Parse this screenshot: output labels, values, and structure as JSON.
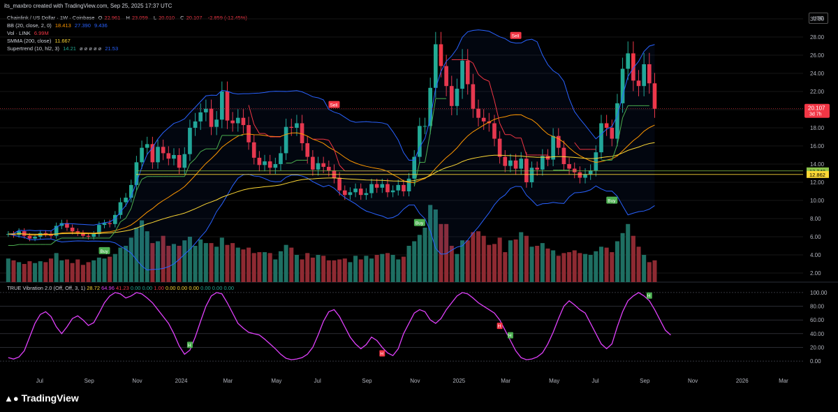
{
  "header": {
    "text": "its_maxbro created with TradingView.com, Sep 25, 2025 17:37 UTC"
  },
  "legend": {
    "main": {
      "name": "Chainlink / US Dollar · 1W · Coinbase",
      "o_label": "O",
      "o": "22.961",
      "h_label": "H",
      "h": "23.059",
      "l_label": "L",
      "l": "20.010",
      "c_label": "C",
      "c": "20.107",
      "change": "-2.859 (-12.45%)"
    },
    "bb": {
      "name": "BB (20, close, 2, 0)",
      "v1": "18.413",
      "v2": "27.390",
      "v3": "9.436"
    },
    "vol": {
      "name": "Vol · LINK",
      "v": "6.99M"
    },
    "smma": {
      "name": "SMMA (200, close)",
      "v": "11.667"
    },
    "supertrend": {
      "name": "Supertrend (10, hl2, 3)",
      "v1": "14.21",
      "dots": "ø ø ø ø ø",
      "v2": "21.53"
    }
  },
  "osc_legend": {
    "name": "TRUE Vibration 2.0 (Off, Off, 3, 1)",
    "v1": "28.72",
    "v2": "64.96",
    "v3": "41.23",
    "v4": "0.00",
    "v5": "0.00",
    "v6": "1.00",
    "v7": "0.00",
    "v8": "0.00",
    "v9": "0.00",
    "v10": "0.00",
    "v11": "0.00",
    "v12": "0.00"
  },
  "currency": "USD",
  "price_tag": {
    "price": "20.107",
    "countdown": "3d 7h"
  },
  "level_tags": [
    "13.248",
    "12.862"
  ],
  "signals": {
    "buy": "Buy",
    "sell": "Sell",
    "h": "H"
  },
  "footer": {
    "brand": "TradingView"
  },
  "colors": {
    "up": "#22ab94",
    "down": "#f23645",
    "bb": "#2962ff",
    "basis": "#ff9800",
    "smma": "#fdd835",
    "supertrend_up": "#4caf50",
    "supertrend_down": "#f23645",
    "osc_line": "#e040fb"
  },
  "chart_data": [
    {
      "type": "candlestick",
      "title": "Chainlink / US Dollar · 1W · Coinbase",
      "x_ticks": [
        "Jul",
        "Sep",
        "Nov",
        "2024",
        "Mar",
        "May",
        "Jul",
        "Sep",
        "Nov",
        "2025",
        "Mar",
        "May",
        "Jul",
        "Sep",
        "Nov",
        "2026",
        "Mar"
      ],
      "y_ticks": [
        "2.00",
        "4.00",
        "6.00",
        "8.00",
        "10.00",
        "12.00",
        "14.00",
        "16.00",
        "18.00",
        "20.00",
        "22.00",
        "24.00",
        "26.00",
        "28.00",
        "30.00"
      ],
      "ylim": [
        1,
        31
      ],
      "close": [
        6.3,
        6.2,
        6.6,
        6.1,
        5.8,
        6.0,
        6.4,
        6.3,
        6.1,
        7.2,
        7.5,
        7.0,
        6.6,
        6.4,
        6.1,
        6.0,
        6.3,
        7.3,
        7.5,
        7.4,
        8.4,
        9.8,
        10.3,
        11.7,
        14.2,
        15.8,
        16.2,
        14.2,
        15.9,
        15.2,
        14.6,
        15.0,
        13.6,
        15.1,
        18.0,
        18.7,
        19.7,
        20.1,
        18.1,
        18.9,
        22.0,
        18.8,
        18.5,
        19.1,
        18.3,
        16.4,
        14.7,
        13.9,
        14.3,
        13.6,
        14.0,
        15.2,
        18.1,
        18.0,
        18.5,
        16.3,
        14.8,
        13.4,
        14.1,
        13.7,
        13.3,
        12.5,
        11.1,
        10.6,
        10.9,
        11.3,
        10.6,
        10.8,
        11.8,
        11.4,
        11.8,
        10.9,
        11.1,
        11.7,
        11.0,
        12.4,
        14.8,
        18.2,
        18.2,
        22.4,
        27.2,
        24.8,
        22.6,
        20.4,
        22.3,
        25.4,
        22.8,
        20.1,
        19.1,
        18.7,
        18.5,
        16.8,
        14.8,
        13.8,
        14.4,
        13.5,
        14.6,
        12.0,
        13.6,
        13.4,
        14.9,
        14.5,
        17.1,
        15.8,
        14.0,
        13.5,
        13.1,
        12.5,
        12.9,
        13.3,
        15.3,
        18.5,
        18.0,
        16.8,
        20.7,
        24.5,
        26.2,
        23.2,
        22.6,
        25.0,
        22.9,
        20.1
      ],
      "volume": [
        2.6,
        2.4,
        2.2,
        2.0,
        2.3,
        2.1,
        2.3,
        2.2,
        2.6,
        3.2,
        2.4,
        2.5,
        2.1,
        2.5,
        1.9,
        2.2,
        2.4,
        2.7,
        2.6,
        2.8,
        3.1,
        3.8,
        4.0,
        4.9,
        6.0,
        6.8,
        5.6,
        4.3,
        4.5,
        5.1,
        4.0,
        4.2,
        4.0,
        4.6,
        5.0,
        4.0,
        4.7,
        4.3,
        4.3,
        3.9,
        4.9,
        4.1,
        4.3,
        3.8,
        3.6,
        3.8,
        3.2,
        3.3,
        3.3,
        3.2,
        2.5,
        3.4,
        4.1,
        3.8,
        3.0,
        2.5,
        3.2,
        2.7,
        3.0,
        2.9,
        2.4,
        2.4,
        2.5,
        2.6,
        2.2,
        2.9,
        2.5,
        2.9,
        2.6,
        3.0,
        3.1,
        3.2,
        3.0,
        2.5,
        2.8,
        4.0,
        4.5,
        5.2,
        6.0,
        8.5,
        8.0,
        6.4,
        6.4,
        4.0,
        3.1,
        4.6,
        4.6,
        5.5,
        5.6,
        5.1,
        4.1,
        4.2,
        4.9,
        3.3,
        4.6,
        4.7,
        5.5,
        5.1,
        3.9,
        4.0,
        4.3,
        3.7,
        3.5,
        2.9,
        3.2,
        3.3,
        3.5,
        3.2,
        3.1,
        3.0,
        3.4,
        3.9,
        3.8,
        3.3,
        4.5,
        5.4,
        6.4,
        5.1,
        3.9,
        3.0,
        2.2,
        2.4
      ]
    },
    {
      "type": "line",
      "title": "TRUE Vibration 2.0 (Off, Off, 3, 1)",
      "y_ticks": [
        "0.00",
        "20.00",
        "40.00",
        "60.00",
        "80.00",
        "100.00"
      ],
      "ylim": [
        -5,
        105
      ],
      "series": [
        {
          "values": [
            5,
            3,
            6,
            15,
            35,
            55,
            68,
            72,
            65,
            50,
            40,
            50,
            62,
            66,
            60,
            52,
            56,
            70,
            85,
            95,
            100,
            98,
            92,
            95,
            100,
            98,
            92,
            85,
            75,
            65,
            55,
            40,
            22,
            10,
            16,
            35,
            58,
            80,
            95,
            100,
            98,
            85,
            70,
            55,
            48,
            42,
            40,
            38,
            32,
            25,
            18,
            10,
            4,
            2,
            3,
            5,
            10,
            20,
            38,
            58,
            72,
            75,
            65,
            50,
            35,
            25,
            18,
            24,
            35,
            30,
            20,
            12,
            8,
            18,
            40,
            55,
            70,
            75,
            72,
            60,
            55,
            62,
            75,
            85,
            95,
            100,
            98,
            92,
            85,
            80,
            75,
            70,
            60,
            45,
            30,
            15,
            5,
            2,
            3,
            6,
            12,
            25,
            42,
            62,
            80,
            88,
            82,
            75,
            70,
            55,
            40,
            25,
            18,
            25,
            50,
            72,
            88,
            95,
            100,
            95,
            88,
            75,
            60,
            45,
            38
          ]
        }
      ]
    }
  ]
}
